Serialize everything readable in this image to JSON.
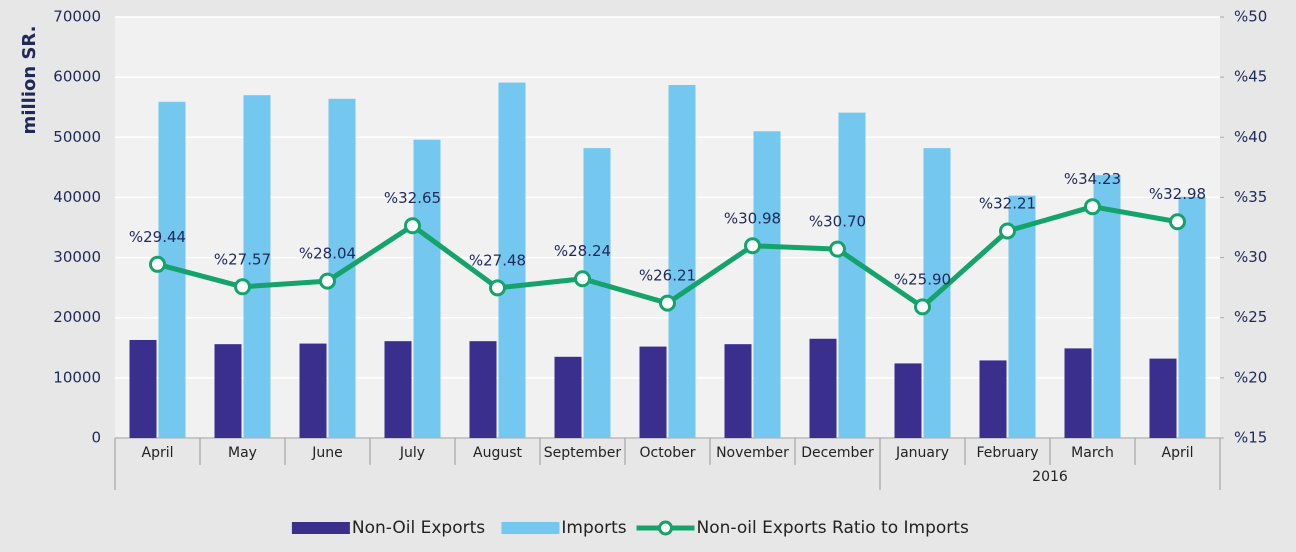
{
  "chart_data": {
    "type": "bar_line",
    "y_axis_label": "million SR.",
    "categories": [
      "April",
      "May",
      "June",
      "July",
      "August",
      "September",
      "October",
      "November",
      "December",
      "January",
      "February",
      "March",
      "April"
    ],
    "category_years": [
      null,
      null,
      null,
      null,
      null,
      null,
      null,
      null,
      null,
      "2016",
      "2016",
      "2016",
      "2016"
    ],
    "series": [
      {
        "name": "Non-Oil Exports",
        "color": "#3b2f8e",
        "type": "bar",
        "values": [
          16300,
          15600,
          15700,
          16100,
          16100,
          13500,
          15200,
          15600,
          16500,
          12400,
          12900,
          14900,
          13200
        ]
      },
      {
        "name": "Imports",
        "color": "#74c7ef",
        "type": "bar",
        "values": [
          55900,
          57000,
          56400,
          49600,
          59100,
          48200,
          58700,
          51000,
          54100,
          48200,
          40300,
          43700,
          40100
        ]
      },
      {
        "name": "Non-oil Exports Ratio to Imports",
        "color": "#14a36a",
        "type": "line",
        "axis": "y2",
        "values": [
          29.44,
          27.57,
          28.04,
          32.65,
          27.48,
          28.24,
          26.21,
          30.98,
          30.7,
          25.9,
          32.21,
          34.23,
          32.98
        ],
        "value_labels": [
          "%29.44",
          "%27.57",
          "%28.04",
          "%32.65",
          "%27.48",
          "%28.24",
          "%26.21",
          "%30.98",
          "%30.70",
          "%25.90",
          "%32.21",
          "%34.23",
          "%32.98"
        ]
      }
    ],
    "ylim": [
      0,
      70000
    ],
    "yticks": [
      0,
      10000,
      20000,
      30000,
      40000,
      50000,
      60000,
      70000
    ],
    "y2lim": [
      15,
      50
    ],
    "y2ticks": [
      {
        "value": 15,
        "label": "%15"
      },
      {
        "value": 20,
        "label": "%20"
      },
      {
        "value": 25,
        "label": "%25"
      },
      {
        "value": 30,
        "label": "%30"
      },
      {
        "value": 35,
        "label": "%35"
      },
      {
        "value": 40,
        "label": "%40"
      },
      {
        "value": 45,
        "label": "%45"
      },
      {
        "value": 50,
        "label": "%50"
      }
    ],
    "grid": true,
    "legend": "bottom"
  }
}
